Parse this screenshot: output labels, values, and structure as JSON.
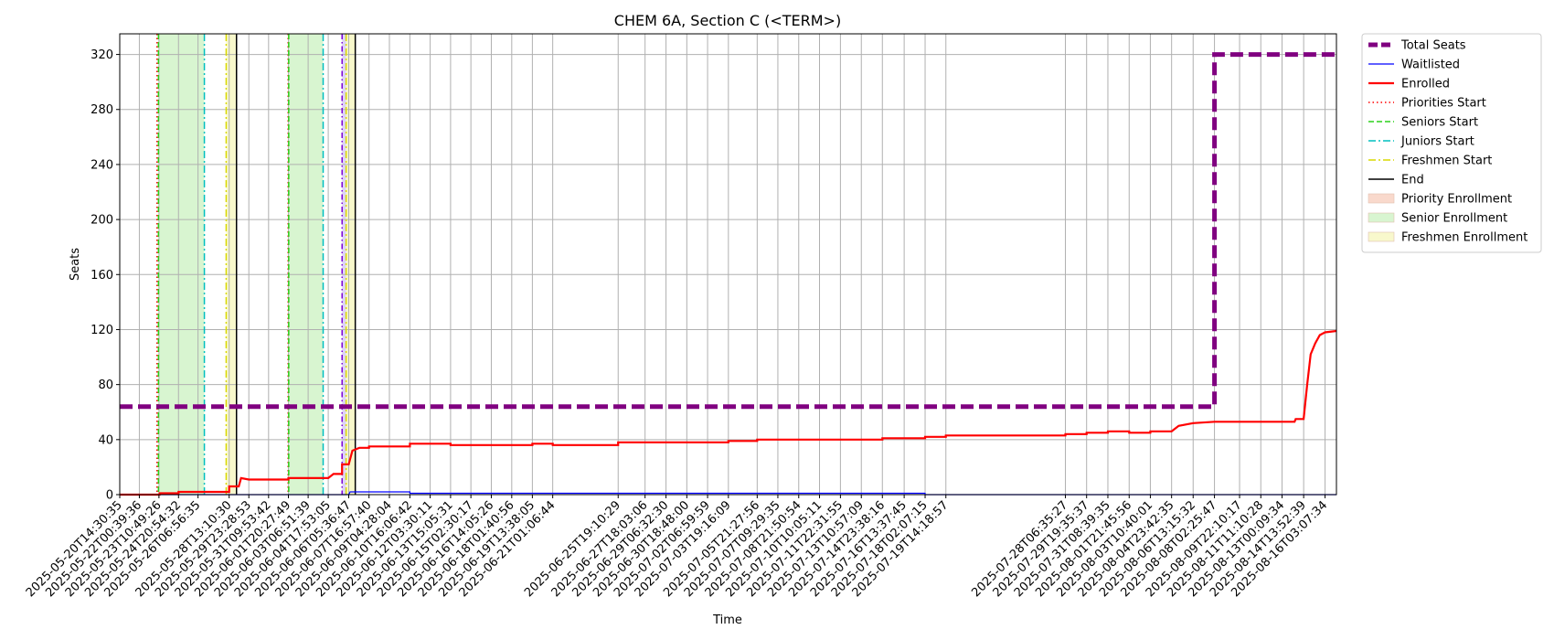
{
  "chart_data": {
    "type": "line",
    "title": "CHEM 6A, Section C (<TERM>)",
    "xlabel": "Time",
    "ylabel": "Seats",
    "ylim": [
      0,
      335
    ],
    "yticks": [
      0,
      40,
      80,
      120,
      160,
      200,
      240,
      280,
      320
    ],
    "grid": true,
    "legend_position": "outside-right-top",
    "x_range": [
      "2025-05-20T14:30:35",
      "2025-08-16T23:00:00"
    ],
    "x_tick_labels": [
      "2025-05-20T14:30:35",
      "2025-05-22T00:39:36",
      "2025-05-23T10:49:26",
      "2025-05-24T20:54:32",
      "2025-05-26T06:56:35",
      "2025-05-28T13:10:30",
      "2025-05-29T23:28:53",
      "2025-05-31T09:53:42",
      "2025-06-01T20:27:49",
      "2025-06-03T06:51:39",
      "2025-06-04T17:53:05",
      "2025-06-06T05:36:47",
      "2025-06-07T16:57:40",
      "2025-06-09T04:28:04",
      "2025-06-10T16:06:42",
      "2025-06-12T03:30:11",
      "2025-06-13T15:05:31",
      "2025-06-15T02:30:17",
      "2025-06-16T14:05:26",
      "2025-06-18T01:40:56",
      "2025-06-19T13:38:05",
      "2025-06-21T01:06:44",
      "2025-06-25T19:10:29",
      "2025-06-27T18:03:06",
      "2025-06-29T06:32:30",
      "2025-06-30T18:48:00",
      "2025-07-02T06:59:59",
      "2025-07-03T19:16:09",
      "2025-07-05T21:27:56",
      "2025-07-07T09:29:35",
      "2025-07-08T21:50:54",
      "2025-07-10T10:05:11",
      "2025-07-11T22:31:55",
      "2025-07-13T10:57:09",
      "2025-07-14T23:38:16",
      "2025-07-16T13:37:45",
      "2025-07-18T02:07:15",
      "2025-07-19T14:18:57",
      "2025-07-28T06:35:27",
      "2025-07-29T19:35:37",
      "2025-07-31T08:39:35",
      "2025-08-01T21:45:56",
      "2025-08-03T10:40:01",
      "2025-08-04T23:42:35",
      "2025-08-06T13:15:32",
      "2025-08-08T02:25:47",
      "2025-08-09T22:10:17",
      "2025-08-11T11:10:28",
      "2025-08-13T00:09:34",
      "2025-08-14T13:52:39",
      "2025-08-16T03:07:34"
    ],
    "series": [
      {
        "name": "Total Seats",
        "color": "#800080",
        "style": "dashed-thick",
        "points": [
          [
            "2025-05-20T14:30:35",
            64
          ],
          [
            "2025-08-08T02:25:47",
            64
          ],
          [
            "2025-08-08T02:25:47",
            320
          ],
          [
            "2025-08-16T23:00:00",
            320
          ]
        ]
      },
      {
        "name": "Waitlisted",
        "color": "#0000ff",
        "style": "solid-thin",
        "points": [
          [
            "2025-05-20T14:30:35",
            0
          ],
          [
            "2025-06-06T05:36:47",
            0
          ],
          [
            "2025-06-06T08:00:00",
            2
          ],
          [
            "2025-06-10T16:06:42",
            2
          ],
          [
            "2025-06-10T16:06:42",
            1
          ],
          [
            "2025-07-18T02:07:15",
            1
          ],
          [
            "2025-07-18T02:07:15",
            0
          ],
          [
            "2025-08-16T23:00:00",
            0
          ]
        ]
      },
      {
        "name": "Enrolled",
        "color": "#ff0000",
        "style": "solid",
        "points": [
          [
            "2025-05-20T14:30:35",
            0
          ],
          [
            "2025-05-23T12:00:00",
            0
          ],
          [
            "2025-05-23T12:00:00",
            1
          ],
          [
            "2025-05-24T20:54:32",
            1
          ],
          [
            "2025-05-24T20:54:32",
            2
          ],
          [
            "2025-05-28T13:10:30",
            2
          ],
          [
            "2025-05-28T13:10:30",
            6
          ],
          [
            "2025-05-29T06:00:00",
            6
          ],
          [
            "2025-05-29T10:00:00",
            12
          ],
          [
            "2025-05-29T23:28:53",
            11
          ],
          [
            "2025-06-01T20:27:49",
            11
          ],
          [
            "2025-06-01T20:27:49",
            12
          ],
          [
            "2025-06-04T17:53:05",
            12
          ],
          [
            "2025-06-05T03:00:00",
            15
          ],
          [
            "2025-06-05T18:00:00",
            15
          ],
          [
            "2025-06-05T18:00:00",
            22
          ],
          [
            "2025-06-06T05:36:47",
            22
          ],
          [
            "2025-06-06T12:00:00",
            32
          ],
          [
            "2025-06-07T00:00:00",
            34
          ],
          [
            "2025-06-07T16:57:40",
            34
          ],
          [
            "2025-06-07T16:57:40",
            35
          ],
          [
            "2025-06-10T16:06:42",
            35
          ],
          [
            "2025-06-10T16:06:42",
            37
          ],
          [
            "2025-06-13T15:05:31",
            37
          ],
          [
            "2025-06-13T15:05:31",
            36
          ],
          [
            "2025-06-19T13:38:05",
            36
          ],
          [
            "2025-06-19T13:38:05",
            37
          ],
          [
            "2025-06-21T01:06:44",
            37
          ],
          [
            "2025-06-21T01:06:44",
            36
          ],
          [
            "2025-06-25T19:10:29",
            36
          ],
          [
            "2025-06-25T19:10:29",
            38
          ],
          [
            "2025-07-03T19:16:09",
            38
          ],
          [
            "2025-07-03T19:16:09",
            39
          ],
          [
            "2025-07-05T21:27:56",
            39
          ],
          [
            "2025-07-05T21:27:56",
            40
          ],
          [
            "2025-07-14T23:38:16",
            40
          ],
          [
            "2025-07-14T23:38:16",
            41
          ],
          [
            "2025-07-18T02:07:15",
            41
          ],
          [
            "2025-07-18T02:07:15",
            42
          ],
          [
            "2025-07-19T14:18:57",
            42
          ],
          [
            "2025-07-19T14:18:57",
            43
          ],
          [
            "2025-07-28T06:35:27",
            43
          ],
          [
            "2025-07-28T06:35:27",
            44
          ],
          [
            "2025-07-29T19:35:37",
            44
          ],
          [
            "2025-07-29T19:35:37",
            45
          ],
          [
            "2025-07-31T08:39:35",
            45
          ],
          [
            "2025-07-31T08:39:35",
            46
          ],
          [
            "2025-08-01T21:45:56",
            46
          ],
          [
            "2025-08-01T21:45:56",
            45
          ],
          [
            "2025-08-03T10:40:01",
            45
          ],
          [
            "2025-08-03T10:40:01",
            46
          ],
          [
            "2025-08-04T23:42:35",
            46
          ],
          [
            "2025-08-05T12:00:00",
            50
          ],
          [
            "2025-08-06T13:15:32",
            52
          ],
          [
            "2025-08-08T02:25:47",
            53
          ],
          [
            "2025-08-13T22:00:00",
            53
          ],
          [
            "2025-08-14T00:00:00",
            55
          ],
          [
            "2025-08-14T13:52:39",
            55
          ],
          [
            "2025-08-14T20:00:00",
            80
          ],
          [
            "2025-08-15T02:00:00",
            102
          ],
          [
            "2025-08-15T10:00:00",
            110
          ],
          [
            "2025-08-15T18:00:00",
            116
          ],
          [
            "2025-08-16T03:07:34",
            118
          ],
          [
            "2025-08-16T23:00:00",
            119
          ]
        ]
      }
    ],
    "markers": [
      {
        "type": "Priorities Start",
        "color": "#ff0000",
        "dash": "1.5,3",
        "dates": [
          "2025-05-23T07:30:00",
          "2025-06-01T20:00:00"
        ]
      },
      {
        "type": "Seniors Start",
        "color": "#2cd11b",
        "dash": "6,3",
        "dates": [
          "2025-05-23T10:00:00",
          "2025-06-01T21:00:00"
        ]
      },
      {
        "type": "Juniors Start",
        "color": "#00bfbf",
        "dash": "8,3,2,3",
        "dates": [
          "2025-05-26T18:00:00",
          "2025-06-04T09:00:00"
        ]
      },
      {
        "type": "Sophomores Start",
        "color": "#7b00d6",
        "dash": "6,3,1.5,3",
        "dates": [
          "2025-06-05T18:00:00"
        ]
      },
      {
        "type": "Freshmen Start",
        "color": "#d9d900",
        "dash": "8,3,2,3",
        "dates": [
          "2025-05-28T08:00:00",
          "2025-06-06T01:00:00"
        ]
      },
      {
        "type": "End",
        "color": "#000000",
        "dash": "",
        "dates": [
          "2025-05-29T02:00:00",
          "2025-06-06T17:00:00"
        ]
      }
    ],
    "spans": [
      {
        "type": "Senior Enrollment",
        "color": "#d8f5d0",
        "from": "2025-05-23T10:00:00",
        "to": "2025-05-26T18:00:00"
      },
      {
        "type": "Senior Enrollment",
        "color": "#d8f5d0",
        "from": "2025-06-01T21:00:00",
        "to": "2025-06-04T09:00:00"
      },
      {
        "type": "Junior Enrollment",
        "color": "#ffffff",
        "from": "2025-06-04T09:00:00",
        "to": "2025-06-05T18:00:00"
      },
      {
        "type": "Sophomore Enrollment",
        "color": "#ddd3f5",
        "from": "2025-06-05T18:00:00",
        "to": "2025-06-06T01:00:00"
      },
      {
        "type": "Freshmen Enrollment",
        "color": "#f8f8cc",
        "from": "2025-05-28T08:00:00",
        "to": "2025-05-29T02:00:00"
      },
      {
        "type": "Freshmen Enrollment",
        "color": "#f8f8cc",
        "from": "2025-06-06T01:00:00",
        "to": "2025-06-06T17:00:00"
      }
    ],
    "legend": [
      {
        "label": "Total Seats",
        "kind": "line",
        "color": "#800080",
        "width": 5,
        "dash": "10,4"
      },
      {
        "label": "Waitlisted",
        "kind": "line",
        "color": "#0000ff",
        "width": 1.2,
        "dash": ""
      },
      {
        "label": "Enrolled",
        "kind": "line",
        "color": "#ff0000",
        "width": 2.2,
        "dash": ""
      },
      {
        "label": "Priorities Start",
        "kind": "line",
        "color": "#ff0000",
        "width": 1.5,
        "dash": "1.5,3"
      },
      {
        "label": "Seniors Start",
        "kind": "line",
        "color": "#2cd11b",
        "width": 1.5,
        "dash": "6,3"
      },
      {
        "label": "Juniors Start",
        "kind": "line",
        "color": "#00bfbf",
        "width": 1.5,
        "dash": "8,3,2,3"
      },
      {
        "label": "Freshmen Start",
        "kind": "line",
        "color": "#d9d900",
        "width": 1.5,
        "dash": "8,3,2,3"
      },
      {
        "label": "End",
        "kind": "line",
        "color": "#000000",
        "width": 1.5,
        "dash": ""
      },
      {
        "label": "Priority Enrollment",
        "kind": "patch",
        "color": "#f9d9cc"
      },
      {
        "label": "Senior Enrollment",
        "kind": "patch",
        "color": "#d8f5d0"
      },
      {
        "label": "Freshmen Enrollment",
        "kind": "patch",
        "color": "#f8f8cc"
      }
    ]
  }
}
